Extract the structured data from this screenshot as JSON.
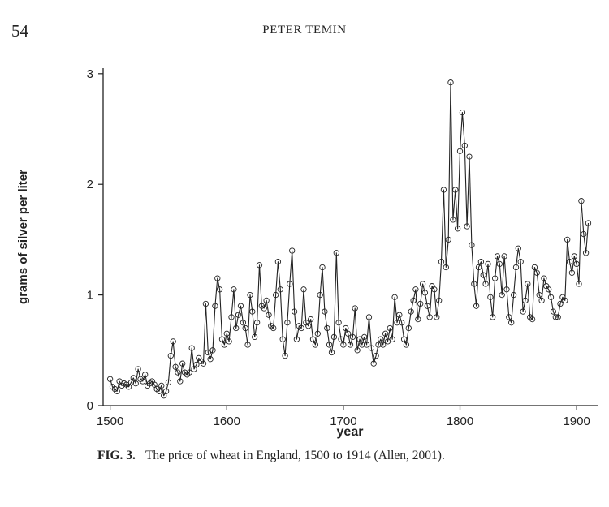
{
  "page": {
    "page_number": "54",
    "running_head": "PETER TEMIN"
  },
  "caption": {
    "label": "FIG. 3.",
    "text": "The price of wheat in England, 1500 to 1914 (Allen, 2001)."
  },
  "chart_data": {
    "type": "line",
    "title": "",
    "xlabel": "year",
    "ylabel": "grams of silver per liter",
    "xlim": [
      1494,
      1918
    ],
    "ylim": [
      0,
      3.05
    ],
    "x_ticks": [
      1500,
      1600,
      1700,
      1800,
      1900
    ],
    "y_ticks": [
      0,
      1,
      2,
      3
    ],
    "grid": false,
    "markers": "open-circle",
    "colors": {
      "line": "#222222",
      "marker": "#222222",
      "axis": "#222222"
    },
    "series": [
      {
        "x_start": 1500,
        "x_step": 2,
        "values": [
          0.24,
          0.17,
          0.15,
          0.13,
          0.22,
          0.18,
          0.2,
          0.19,
          0.17,
          0.21,
          0.25,
          0.2,
          0.33,
          0.24,
          0.22,
          0.28,
          0.18,
          0.2,
          0.22,
          0.19,
          0.15,
          0.13,
          0.18,
          0.09,
          0.13,
          0.21,
          0.45,
          0.58,
          0.35,
          0.3,
          0.22,
          0.38,
          0.3,
          0.28,
          0.3,
          0.52,
          0.33,
          0.37,
          0.43,
          0.4,
          0.38,
          0.92,
          0.48,
          0.42,
          0.5,
          0.9,
          1.15,
          1.05,
          0.6,
          0.55,
          0.65,
          0.58,
          0.8,
          1.05,
          0.7,
          0.82,
          0.9,
          0.75,
          0.7,
          0.55,
          1.0,
          0.85,
          0.62,
          0.75,
          1.27,
          0.9,
          0.88,
          0.95,
          0.82,
          0.72,
          0.7,
          1.0,
          1.3,
          1.05,
          0.6,
          0.45,
          0.75,
          1.1,
          1.4,
          0.85,
          0.6,
          0.72,
          0.7,
          1.05,
          0.75,
          0.72,
          0.78,
          0.6,
          0.55,
          0.65,
          1.0,
          1.25,
          0.85,
          0.7,
          0.55,
          0.48,
          0.62,
          1.38,
          0.75,
          0.6,
          0.55,
          0.7,
          0.65,
          0.55,
          0.62,
          0.88,
          0.5,
          0.6,
          0.55,
          0.62,
          0.55,
          0.8,
          0.52,
          0.38,
          0.45,
          0.55,
          0.6,
          0.55,
          0.65,
          0.58,
          0.7,
          0.6,
          0.98,
          0.75,
          0.82,
          0.75,
          0.6,
          0.55,
          0.7,
          0.85,
          0.95,
          1.05,
          0.78,
          0.92,
          1.1,
          1.02,
          0.9,
          0.8,
          1.08,
          1.05,
          0.8,
          0.95,
          1.3,
          1.95,
          1.25,
          1.5,
          2.92,
          1.68,
          1.95,
          1.6,
          2.3,
          2.65,
          2.35,
          1.62,
          2.25,
          1.45,
          1.1,
          0.9,
          1.25,
          1.3,
          1.18,
          1.1,
          1.28,
          0.98,
          0.8,
          1.15,
          1.35,
          1.28,
          1.0,
          1.35,
          1.05,
          0.8,
          0.75,
          1.0,
          1.25,
          1.42,
          1.3,
          0.85,
          0.95,
          1.1,
          0.8,
          0.78,
          1.25,
          1.2,
          1.0,
          0.95,
          1.15,
          1.08,
          1.05,
          0.98,
          0.85,
          0.8,
          0.8,
          0.92,
          0.98,
          0.95,
          1.5,
          1.3,
          1.2,
          1.35,
          1.28,
          1.1,
          1.85,
          1.55,
          1.38,
          1.65
        ]
      }
    ]
  }
}
